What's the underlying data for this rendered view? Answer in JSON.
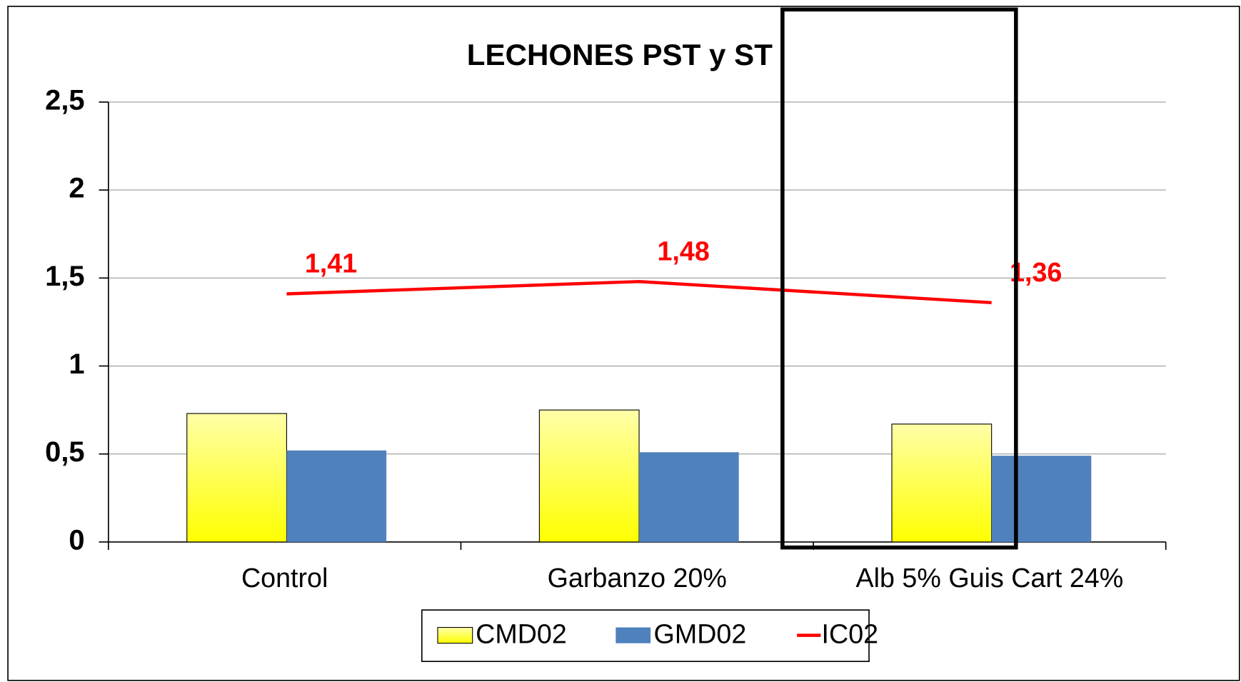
{
  "chart_data": {
    "type": "bar",
    "title": "LECHONES PST y ST",
    "categories": [
      "Control",
      "Garbanzo 20%",
      "Alb 5% Guis Cart 24%"
    ],
    "series": [
      {
        "name": "CMD02",
        "type": "bar",
        "color": "#ffff00",
        "values": [
          0.73,
          0.75,
          0.67
        ]
      },
      {
        "name": "GMD02",
        "type": "bar",
        "color": "#4f81bd",
        "values": [
          0.52,
          0.51,
          0.49
        ]
      },
      {
        "name": "IC02",
        "type": "line",
        "color": "#ff0000",
        "values": [
          1.41,
          1.48,
          1.36
        ],
        "value_labels": [
          "1,41",
          "1,48",
          "1,36"
        ]
      }
    ],
    "ylim": [
      0,
      2.5
    ],
    "yticks": [
      0,
      {
        "value": 0.5,
        "label": "0,5"
      },
      1,
      {
        "value": 1.5,
        "label": "1,5"
      },
      2,
      {
        "value": 2.5,
        "label": "2,5"
      }
    ],
    "grid": true,
    "legend": "bottom",
    "highlight_category": 2
  }
}
